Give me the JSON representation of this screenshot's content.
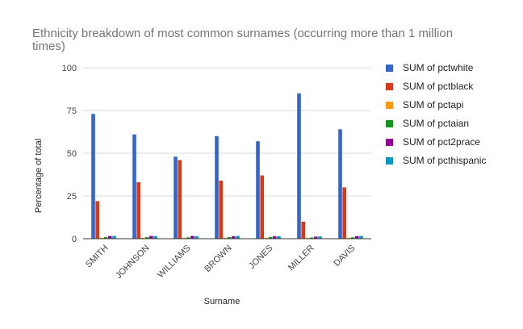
{
  "chart_data": {
    "type": "bar",
    "title_lines": [
      "Ethnicity breakdown of most common surnames (occurring more than 1 million",
      "times)"
    ],
    "xlabel": "Surname",
    "ylabel": "Percentage of total",
    "ylim": [
      0,
      100
    ],
    "yticks": [
      0,
      25,
      50,
      75,
      100
    ],
    "grid": true,
    "legend_position": "right",
    "categories": [
      "SMITH",
      "JOHNSON",
      "WILLIAMS",
      "BROWN",
      "JONES",
      "MILLER",
      "DAVIS"
    ],
    "series": [
      {
        "name": "SUM of pctwhite",
        "color": "#3366cc",
        "values": [
          73,
          61,
          48,
          60,
          57,
          85,
          64
        ]
      },
      {
        "name": "SUM of pctblack",
        "color": "#dc3912",
        "values": [
          22,
          33,
          46,
          34,
          37,
          10,
          30
        ]
      },
      {
        "name": "SUM of pctapi",
        "color": "#ff9900",
        "values": [
          0.5,
          0.5,
          0.5,
          0.5,
          0.5,
          0.5,
          0.5
        ]
      },
      {
        "name": "SUM of pctaian",
        "color": "#109618",
        "values": [
          0.9,
          0.9,
          0.8,
          0.9,
          1.0,
          0.7,
          0.8
        ]
      },
      {
        "name": "SUM of pct2prace",
        "color": "#990099",
        "values": [
          1.6,
          1.6,
          1.6,
          1.4,
          1.4,
          1.2,
          1.5
        ]
      },
      {
        "name": "SUM of pcthispanic",
        "color": "#0099c6",
        "values": [
          1.6,
          1.5,
          1.5,
          1.6,
          1.4,
          1.3,
          1.6
        ]
      }
    ]
  }
}
